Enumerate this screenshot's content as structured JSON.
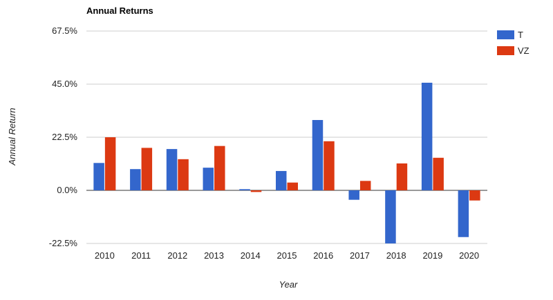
{
  "chart_data": {
    "type": "bar",
    "title": "Annual Returns",
    "xlabel": "Year",
    "ylabel": "Annual Return",
    "categories": [
      "2010",
      "2011",
      "2012",
      "2013",
      "2014",
      "2015",
      "2016",
      "2017",
      "2018",
      "2019",
      "2020"
    ],
    "series": [
      {
        "name": "T",
        "color": "#3366cc",
        "values": [
          11.6,
          9.0,
          17.5,
          9.6,
          0.5,
          8.2,
          29.8,
          -4.0,
          -22.5,
          45.6,
          -19.8
        ]
      },
      {
        "name": "VZ",
        "color": "#dc3912",
        "values": [
          22.5,
          18.0,
          13.2,
          18.8,
          -0.7,
          3.3,
          20.8,
          4.0,
          11.4,
          13.8,
          -4.3
        ]
      }
    ],
    "y_ticks": [
      -22.5,
      0,
      22.5,
      45,
      67.5
    ],
    "y_tick_labels": [
      "-22.5%",
      "0.0%",
      "22.5%",
      "45.0%",
      "67.5%"
    ],
    "ylim": [
      -22.5,
      67.5
    ],
    "grid": true,
    "legend_position": "right"
  }
}
